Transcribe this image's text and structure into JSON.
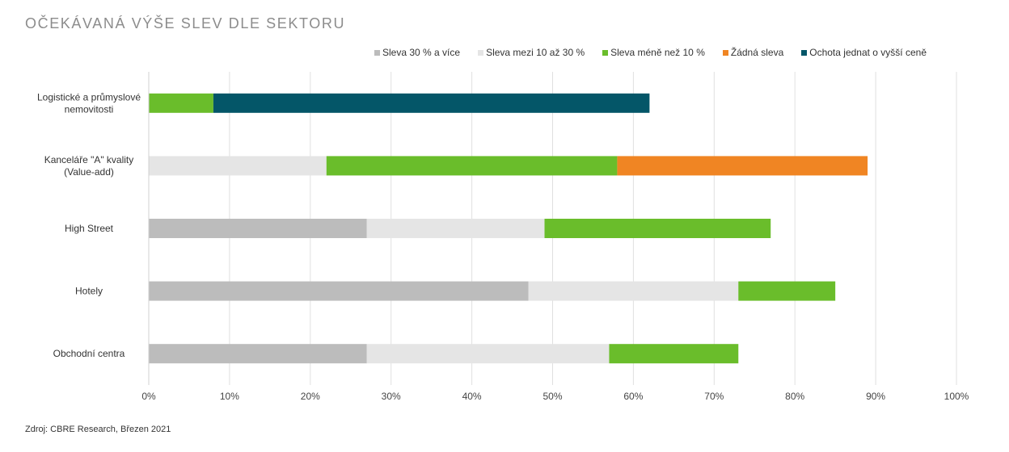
{
  "title": "OČEKÁVANÁ VÝŠE SLEV DLE SEKTORU",
  "source": "Zdroj: CBRE Research, Březen 2021",
  "chart_data": {
    "type": "bar",
    "orientation": "horizontal",
    "stacked": true,
    "title": "OČEKÁVANÁ VÝŠE SLEV DLE SEKTORU",
    "categories": [
      "Logistické a průmyslové nemovitosti",
      "Kanceláře \"A\" kvality (Value-add)",
      "High Street",
      "Hotely",
      "Obchodní centra"
    ],
    "category_lines": [
      [
        "Logistické a průmyslové",
        "nemovitosti"
      ],
      [
        "Kanceláře \"A\" kvality",
        "(Value-add)"
      ],
      [
        "High Street"
      ],
      [
        "Hotely"
      ],
      [
        "Obchodní centra"
      ]
    ],
    "series": [
      {
        "name": "Sleva 30 % a více",
        "color": "#bcbcbc",
        "values": [
          0,
          0,
          27,
          47,
          27
        ]
      },
      {
        "name": "Sleva mezi 10 až 30 %",
        "color": "#e5e5e5",
        "values": [
          0,
          22,
          22,
          26,
          30
        ]
      },
      {
        "name": "Sleva méně než 10 %",
        "color": "#6abd2b",
        "values": [
          8,
          36,
          28,
          12,
          16
        ]
      },
      {
        "name": "Žádná sleva",
        "color": "#f08523",
        "values": [
          0,
          31,
          0,
          0,
          0
        ]
      },
      {
        "name": "Ochota jednat o vyšší ceně",
        "color": "#045668",
        "values": [
          54,
          0,
          0,
          0,
          0
        ]
      }
    ],
    "xlim": [
      0,
      100
    ],
    "xticks": [
      "0%",
      "10%",
      "20%",
      "30%",
      "40%",
      "50%",
      "60%",
      "70%",
      "80%",
      "90%",
      "100%"
    ],
    "grid": true,
    "legend": "top-right"
  }
}
